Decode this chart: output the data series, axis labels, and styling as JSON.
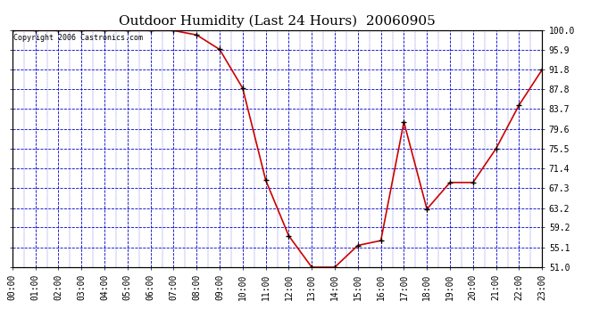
{
  "title": "Outdoor Humidity (Last 24 Hours)  20060905",
  "copyright_text": "Copyright 2006 Castronics.com",
  "x_labels": [
    "00:00",
    "01:00",
    "02:00",
    "03:00",
    "04:00",
    "05:00",
    "06:00",
    "07:00",
    "08:00",
    "09:00",
    "10:00",
    "11:00",
    "12:00",
    "13:00",
    "14:00",
    "15:00",
    "16:00",
    "17:00",
    "18:00",
    "19:00",
    "20:00",
    "21:00",
    "22:00",
    "23:00"
  ],
  "x_values": [
    0,
    1,
    2,
    3,
    4,
    5,
    6,
    7,
    8,
    9,
    10,
    11,
    12,
    13,
    14,
    15,
    16,
    17,
    18,
    19,
    20,
    21,
    22,
    23
  ],
  "y_values": [
    99.9,
    99.9,
    99.9,
    99.9,
    99.9,
    99.9,
    99.9,
    99.9,
    99.0,
    96.0,
    88.0,
    69.0,
    57.5,
    51.0,
    51.0,
    55.5,
    56.5,
    81.0,
    63.0,
    68.5,
    68.5,
    75.5,
    84.5,
    91.8
  ],
  "ylim_min": 51.0,
  "ylim_max": 100.0,
  "ytick_values": [
    51.0,
    55.1,
    59.2,
    63.2,
    67.3,
    71.4,
    75.5,
    79.6,
    83.7,
    87.8,
    91.8,
    95.9,
    100.0
  ],
  "line_color": "#cc0000",
  "marker_color": "#000000",
  "grid_color": "#0000cc",
  "plot_bg_color": "#ffffff",
  "outer_bg_color": "#ffffff",
  "border_color": "#000000",
  "title_fontsize": 11,
  "copyright_fontsize": 6,
  "tick_fontsize": 7
}
